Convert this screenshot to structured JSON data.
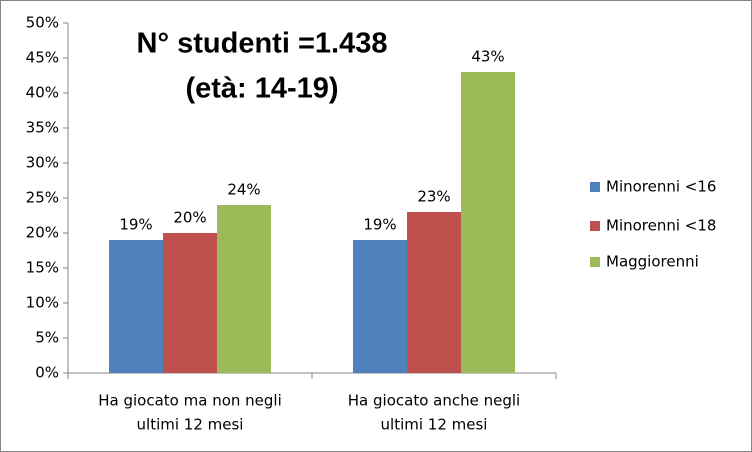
{
  "chart_data": {
    "type": "bar",
    "title": "N° studenti =1.438",
    "subtitle": "(età: 14-19)",
    "categories": [
      [
        "Ha giocato ma non negli",
        "ultimi 12 mesi"
      ],
      [
        "Ha giocato anche negli",
        "ultimi 12 mesi"
      ]
    ],
    "series": [
      {
        "name": "Minorenni <16",
        "color": "#4f81bd",
        "values": [
          19,
          19
        ],
        "value_labels": [
          "19%",
          "19%"
        ]
      },
      {
        "name": "Minorenni <18",
        "color": "#c0504d",
        "values": [
          20,
          23
        ],
        "value_labels": [
          "20%",
          "23%"
        ]
      },
      {
        "name": "Maggiorenni",
        "color": "#9bbb59",
        "values": [
          24,
          43
        ],
        "value_labels": [
          "24%",
          "43%"
        ]
      }
    ],
    "ylim": [
      0,
      50
    ],
    "yticks": [
      {
        "value": 0,
        "label": "0%"
      },
      {
        "value": 5,
        "label": "5%"
      },
      {
        "value": 10,
        "label": "10%"
      },
      {
        "value": 15,
        "label": "15%"
      },
      {
        "value": 20,
        "label": "20%"
      },
      {
        "value": 25,
        "label": "25%"
      },
      {
        "value": 30,
        "label": "30%"
      },
      {
        "value": 35,
        "label": "35%"
      },
      {
        "value": 40,
        "label": "40%"
      },
      {
        "value": 45,
        "label": "45%"
      },
      {
        "value": 50,
        "label": "50%"
      }
    ],
    "grid": false,
    "legend": "right"
  }
}
